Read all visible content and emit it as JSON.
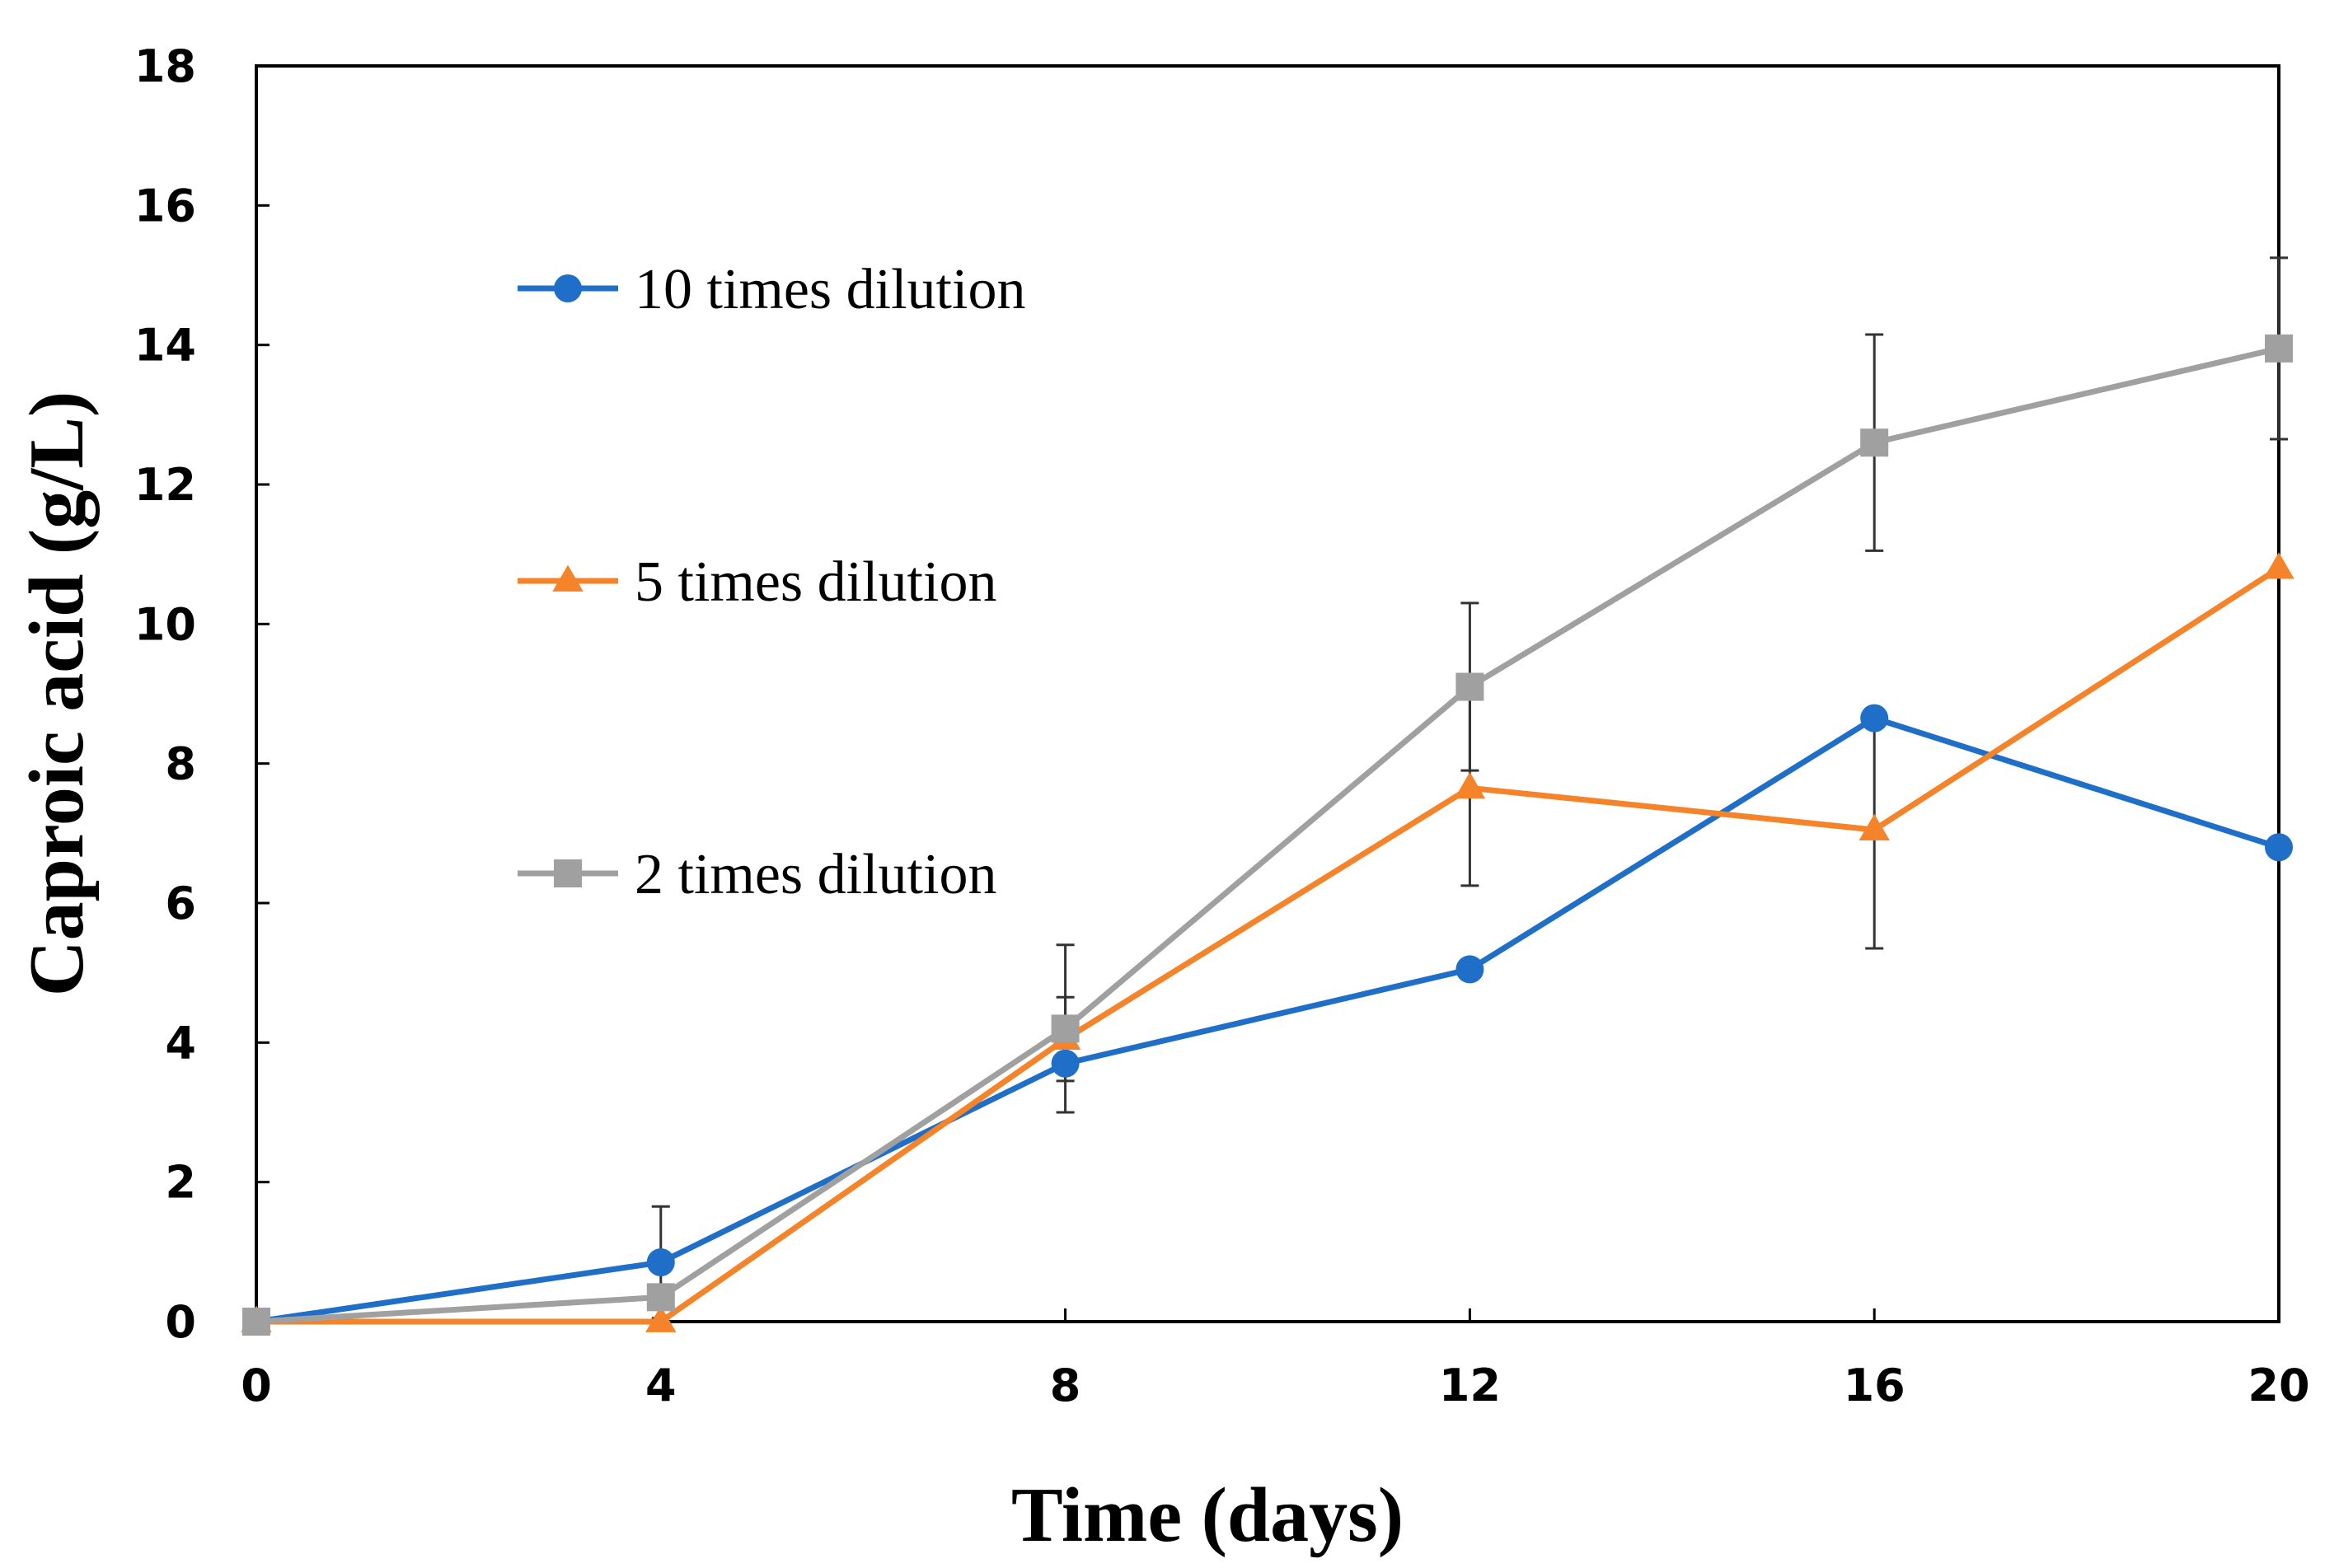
{
  "chart_data": {
    "type": "line",
    "xlabel": "Time (days)",
    "ylabel": "Caproic acid (g/L)",
    "xlim": [
      0,
      20
    ],
    "ylim": [
      0,
      18
    ],
    "x_ticks": [
      "0",
      "4",
      "8",
      "12",
      "16",
      "20"
    ],
    "y_ticks": [
      "0",
      "2",
      "4",
      "6",
      "8",
      "10",
      "12",
      "14",
      "16",
      "18"
    ],
    "grid": false,
    "legend_position": "upper-left inside plot",
    "x": [
      0,
      4,
      8,
      12,
      16,
      20
    ],
    "series": [
      {
        "name": "10 times dilution",
        "color": "#1f6fc9",
        "marker": "circle",
        "values": [
          0,
          0.85,
          3.7,
          5.05,
          8.65,
          6.8
        ],
        "error": [
          0,
          0.8,
          0,
          0,
          0,
          0
        ]
      },
      {
        "name": "5 times dilution",
        "color": "#f5832a",
        "marker": "triangle",
        "values": [
          0,
          0,
          4.05,
          7.65,
          7.05,
          10.8
        ],
        "error": [
          0,
          0,
          0.6,
          1.4,
          1.7,
          0
        ]
      },
      {
        "name": "2 times dilution",
        "color": "#a0a0a0",
        "marker": "square",
        "values": [
          0,
          0.35,
          4.2,
          9.1,
          12.6,
          13.95
        ],
        "error": [
          0,
          0,
          1.2,
          1.2,
          1.55,
          1.3
        ]
      }
    ]
  }
}
